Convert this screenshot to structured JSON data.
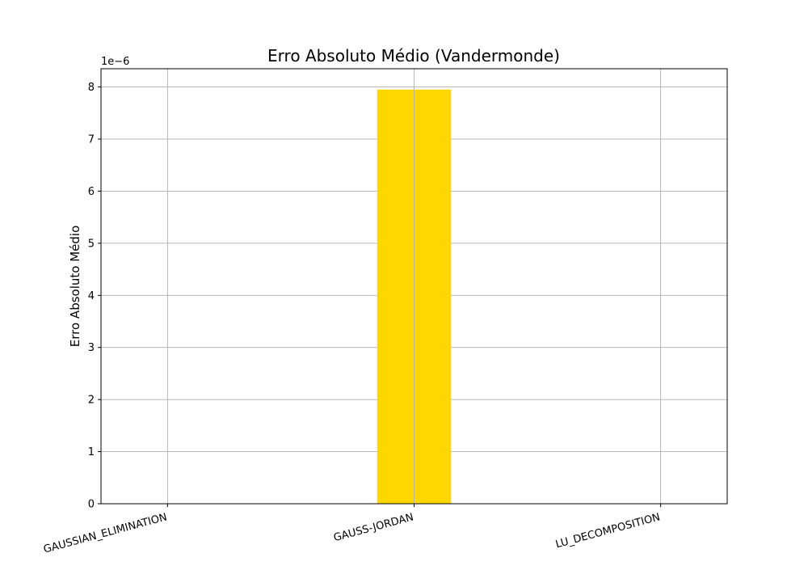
{
  "chart_data": {
    "type": "bar",
    "title": "Erro Absoluto Médio (Vandermonde)",
    "xlabel": "",
    "ylabel": "Erro Absoluto Médio",
    "categories": [
      "GAUSSIAN_ELIMINATION",
      "GAUSS-JORDAN",
      "LU_DECOMPOSITION"
    ],
    "values": [
      0,
      7.95e-06,
      0
    ],
    "ylim": [
      0,
      8.35e-06
    ],
    "yticks": [
      0,
      1,
      2,
      3,
      4,
      5,
      6,
      7,
      8
    ],
    "ytick_labels": [
      "0",
      "1",
      "2",
      "3",
      "4",
      "5",
      "6",
      "7",
      "8"
    ],
    "y_offset_label": "1e−6",
    "bar_color": "#ffd700",
    "grid": true
  }
}
